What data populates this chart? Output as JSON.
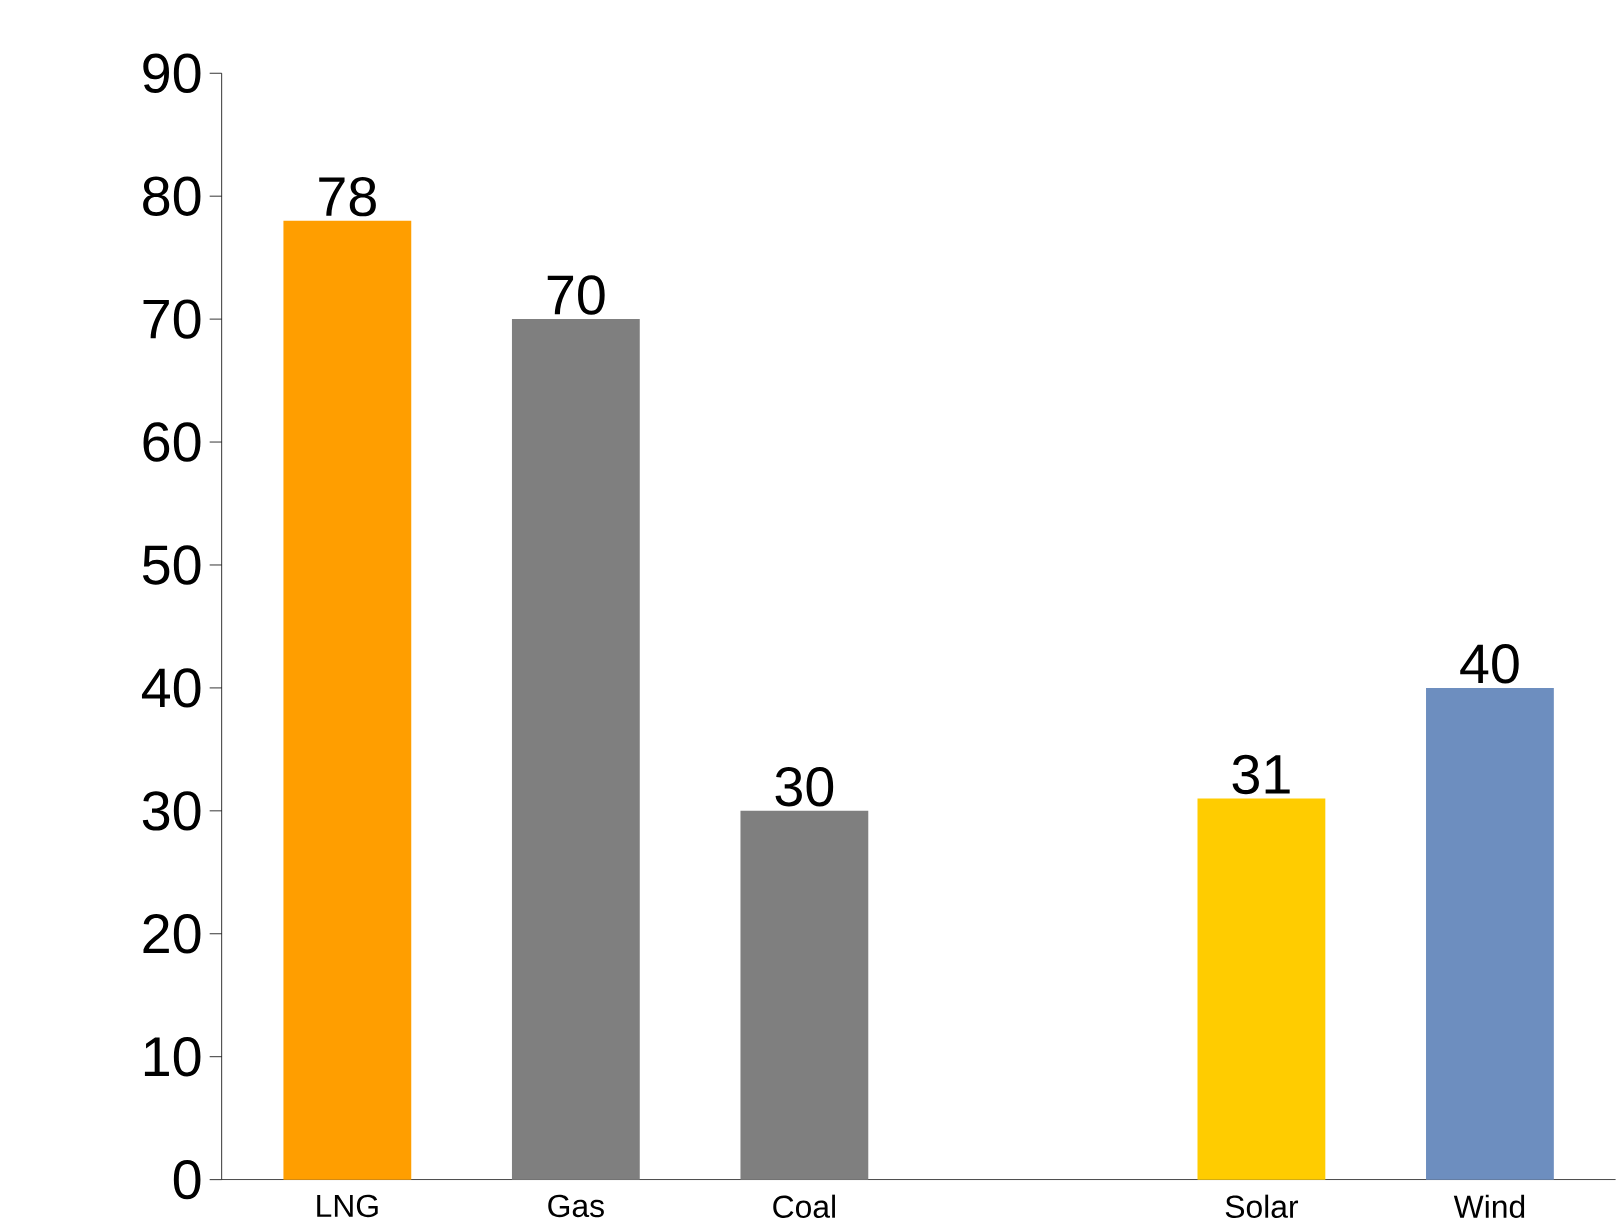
{
  "chart_data": {
    "type": "bar",
    "categories": [
      "LNG",
      "Gas",
      "Coal",
      null,
      "Solar",
      "Wind"
    ],
    "values": [
      78,
      70,
      30,
      null,
      31,
      40
    ],
    "colors": [
      "#ff9e00",
      "#7f7f7f",
      "#7f7f7f",
      "#7f7f7f",
      "#ffcc00",
      "#6d8ebf"
    ],
    "ylim": [
      0,
      90
    ],
    "yticks": [
      0,
      10,
      20,
      30,
      40,
      50,
      60,
      70,
      80,
      90
    ],
    "data_labels": true
  }
}
